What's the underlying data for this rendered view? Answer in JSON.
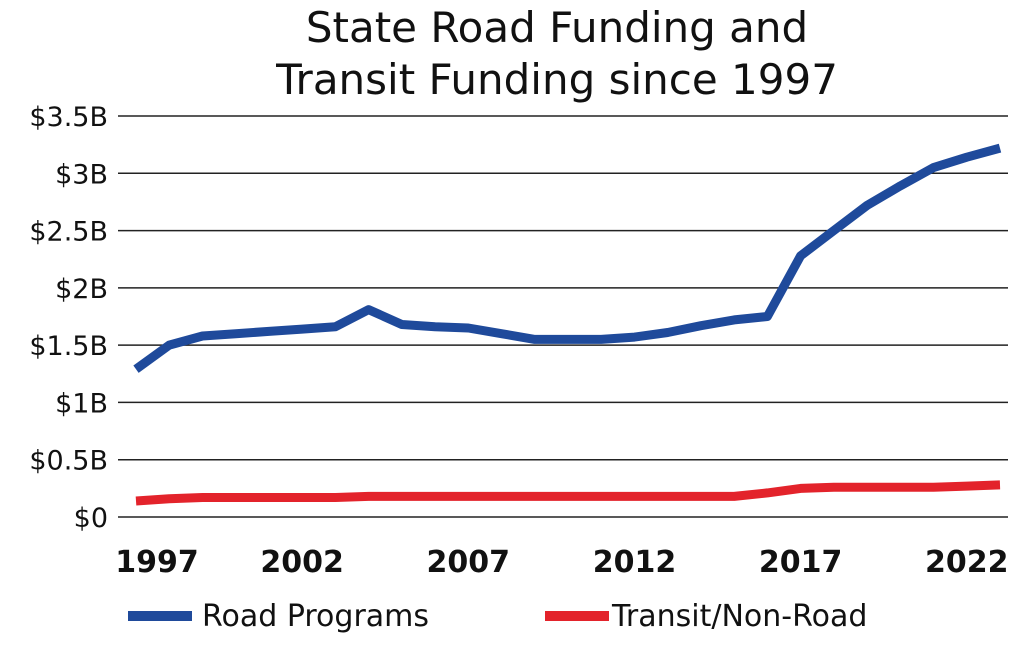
{
  "chart_data": {
    "type": "line",
    "title_lines": [
      "State Road Funding and",
      "Transit Funding since 1997"
    ],
    "xlabel": "",
    "ylabel": "",
    "ylim": [
      0,
      3.5
    ],
    "y_ticks": [
      {
        "value": 0,
        "label": "$0"
      },
      {
        "value": 0.5,
        "label": "$0.5B"
      },
      {
        "value": 1,
        "label": "$1B"
      },
      {
        "value": 1.5,
        "label": "$1.5B"
      },
      {
        "value": 2,
        "label": "$2B"
      },
      {
        "value": 2.5,
        "label": "$2.5B"
      },
      {
        "value": 3,
        "label": "$3B"
      },
      {
        "value": 3.5,
        "label": "$3.5B"
      }
    ],
    "xlim": [
      1997,
      2023
    ],
    "x_ticks": [
      1997,
      2002,
      2007,
      2012,
      2017,
      2022
    ],
    "grid": true,
    "legend_position": "bottom",
    "series": [
      {
        "name": "Road Programs",
        "color": "#1f4a9b",
        "x": [
          1997,
          1998,
          1999,
          2000,
          2001,
          2002,
          2003,
          2004,
          2005,
          2006,
          2007,
          2008,
          2009,
          2010,
          2011,
          2012,
          2013,
          2014,
          2015,
          2016,
          2017,
          2018,
          2019,
          2020,
          2021,
          2022,
          2023
        ],
        "values": [
          1.29,
          1.5,
          1.58,
          1.6,
          1.62,
          1.64,
          1.66,
          1.81,
          1.68,
          1.66,
          1.65,
          1.6,
          1.55,
          1.55,
          1.55,
          1.57,
          1.61,
          1.67,
          1.72,
          1.75,
          2.28,
          2.5,
          2.72,
          2.89,
          3.05,
          3.14,
          3.22
        ]
      },
      {
        "name": "Transit/Non-Road",
        "color": "#e3232b",
        "x": [
          1997,
          1998,
          1999,
          2000,
          2001,
          2002,
          2003,
          2004,
          2005,
          2006,
          2007,
          2008,
          2009,
          2010,
          2011,
          2012,
          2013,
          2014,
          2015,
          2016,
          2017,
          2018,
          2019,
          2020,
          2021,
          2022,
          2023
        ],
        "values": [
          0.14,
          0.16,
          0.17,
          0.17,
          0.17,
          0.17,
          0.17,
          0.18,
          0.18,
          0.18,
          0.18,
          0.18,
          0.18,
          0.18,
          0.18,
          0.18,
          0.18,
          0.18,
          0.18,
          0.21,
          0.25,
          0.26,
          0.26,
          0.26,
          0.26,
          0.27,
          0.28
        ]
      }
    ]
  }
}
